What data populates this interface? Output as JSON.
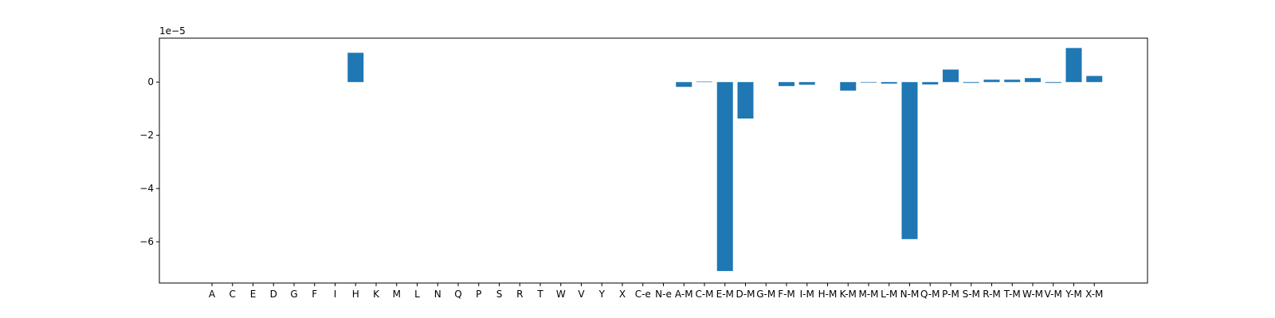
{
  "chart_data": {
    "type": "bar",
    "categories": [
      "A",
      "C",
      "E",
      "D",
      "G",
      "F",
      "I",
      "H",
      "K",
      "M",
      "L",
      "N",
      "Q",
      "P",
      "S",
      "R",
      "T",
      "W",
      "V",
      "Y",
      "X",
      "C-e",
      "N-e",
      "A-M",
      "C-M",
      "E-M",
      "D-M",
      "G-M",
      "F-M",
      "I-M",
      "H-M",
      "K-M",
      "M-M",
      "L-M",
      "N-M",
      "Q-M",
      "P-M",
      "S-M",
      "R-M",
      "T-M",
      "W-M",
      "V-M",
      "Y-M",
      "X-M"
    ],
    "values": [
      0,
      0,
      0,
      0,
      0,
      0,
      0,
      1.1e-05,
      0,
      0,
      0,
      0,
      0,
      0,
      0,
      0,
      0,
      0,
      0,
      0,
      0,
      0,
      0,
      -1.8e-06,
      2e-07,
      -7.1e-05,
      -1.37e-05,
      0,
      -1.5e-06,
      -1e-06,
      0,
      -3.2e-06,
      -2e-07,
      -6e-07,
      -5.9e-05,
      -9e-07,
      4.7e-06,
      -3e-07,
      9e-07,
      9e-07,
      1.5e-06,
      -3e-07,
      1.28e-05,
      2.3e-06
    ],
    "title": "",
    "xlabel": "",
    "ylabel": "",
    "ylim": [
      -7.55e-05,
      1.65e-05
    ],
    "yticks": [
      0,
      -2e-05,
      -4e-05,
      -6e-05
    ],
    "ytick_labels": [
      "0",
      "−2",
      "−4",
      "−6"
    ],
    "offset_text": "1e−5",
    "grid": false,
    "bar_color": "#1f77b4"
  }
}
